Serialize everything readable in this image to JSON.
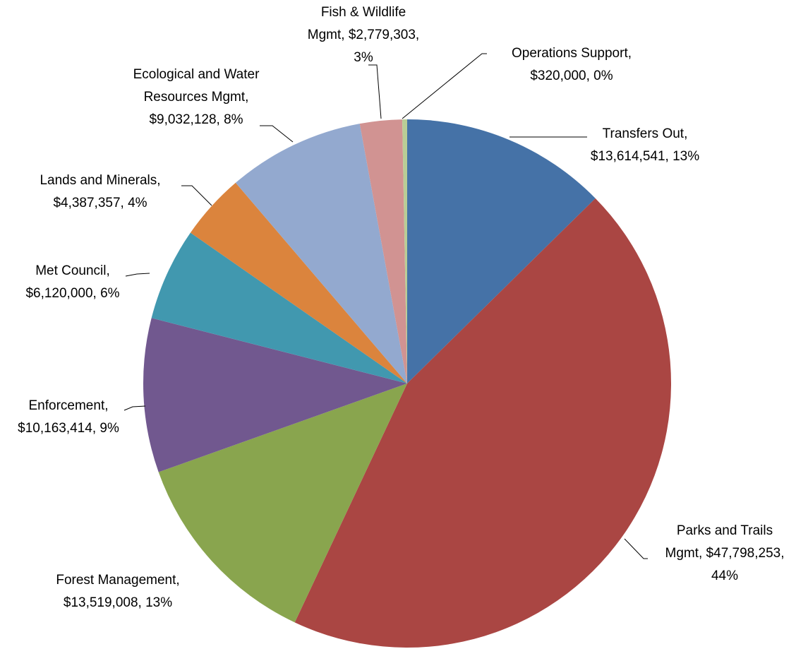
{
  "chart_data": {
    "type": "pie",
    "values": [
      13614541,
      47798253,
      13519008,
      10163414,
      6120000,
      4387357,
      9032128,
      2779303,
      320000
    ],
    "value_labels": [
      [
        "Transfers Out,",
        "$13,614,541, 13%"
      ],
      [
        "Parks and Trails",
        "Mgmt, $47,798,253,",
        "44%"
      ],
      [
        "Forest Management,",
        "$13,519,008, 13%"
      ],
      [
        "Enforcement,",
        "$10,163,414, 9%"
      ],
      [
        "Met Council,",
        "$6,120,000, 6%"
      ],
      [
        "Lands and Minerals,",
        "$4,387,357, 4%"
      ],
      [
        "Ecological and Water",
        "Resources Mgmt,",
        "$9,032,128, 8%"
      ],
      [
        "Fish & Wildlife",
        "Mgmt, $2,779,303,",
        "3%"
      ],
      [
        "Operations Support,",
        "$320,000, 0%"
      ]
    ],
    "colors": [
      "#4572a7",
      "#aa4643",
      "#89a54e",
      "#71588f",
      "#4198af",
      "#db843d",
      "#93a9cf",
      "#d19392",
      "#b9cd96"
    ]
  }
}
